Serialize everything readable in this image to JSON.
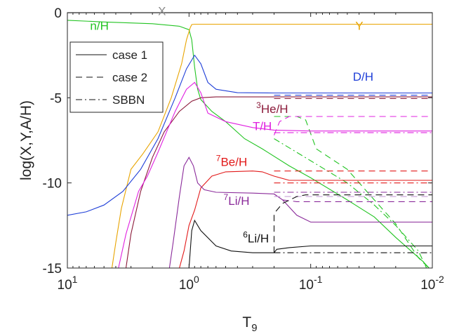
{
  "chart_data": {
    "type": "line",
    "xlabel": "T",
    "xlabel_sub": "9",
    "ylabel": "log(X,Y,A/H)",
    "x_scale": "log",
    "x_reversed": true,
    "xlim": [
      10,
      0.01
    ],
    "ylim": [
      -15,
      0
    ],
    "x_ticks": [
      {
        "value": 10,
        "base": "10",
        "exp": "1"
      },
      {
        "value": 1,
        "base": "10",
        "exp": "0"
      },
      {
        "value": 0.1,
        "base": "10",
        "exp": "-1"
      },
      {
        "value": 0.01,
        "base": "10",
        "exp": "-2"
      }
    ],
    "y_ticks": [
      {
        "value": 0,
        "label": "0"
      },
      {
        "value": -5,
        "label": "-5"
      },
      {
        "value": -10,
        "label": "-10"
      },
      {
        "value": -15,
        "label": "-15"
      }
    ],
    "legend": {
      "placement": "upper-left",
      "entries": [
        {
          "label": "case 1",
          "style": "solid"
        },
        {
          "label": "case 2",
          "style": "dashed"
        },
        {
          "label": "SBBN",
          "style": "dashdot"
        }
      ]
    },
    "series": [
      {
        "id": "x",
        "color": "#9a9a9a",
        "style": "solid",
        "points": [
          [
            10,
            -0.02
          ],
          [
            0.01,
            -0.02
          ]
        ]
      },
      {
        "id": "nh",
        "color": "#22c422",
        "style": "solid",
        "points": [
          [
            10,
            -0.45
          ],
          [
            5,
            -0.55
          ],
          [
            2,
            -0.65
          ],
          [
            1.2,
            -0.8
          ],
          [
            1,
            -1.0
          ],
          [
            0.95,
            -1.6
          ],
          [
            0.9,
            -3.2
          ],
          [
            0.85,
            -4.5
          ],
          [
            0.8,
            -5.1
          ],
          [
            0.65,
            -5.8
          ],
          [
            0.5,
            -6.4
          ],
          [
            0.35,
            -7.4
          ],
          [
            0.25,
            -8.0
          ],
          [
            0.15,
            -9.0
          ],
          [
            0.1,
            -9.7
          ],
          [
            0.05,
            -11.0
          ],
          [
            0.03,
            -12.0
          ],
          [
            0.02,
            -13.2
          ],
          [
            0.012,
            -14.6
          ],
          [
            0.01,
            -15.2
          ]
        ]
      },
      {
        "id": "nh2",
        "color": "#22c422",
        "style": "dashed",
        "points": [
          [
            0.2,
            -6.1
          ],
          [
            0.13,
            -6.1
          ],
          [
            0.11,
            -6.3
          ],
          [
            0.09,
            -8.0
          ],
          [
            0.05,
            -9.2
          ],
          [
            0.03,
            -11.0
          ],
          [
            0.02,
            -12.4
          ],
          [
            0.013,
            -14.4
          ],
          [
            0.01,
            -15.2
          ]
        ]
      },
      {
        "id": "nh3",
        "color": "#22c422",
        "style": "dashdot",
        "points": [
          [
            0.2,
            -7.4
          ],
          [
            0.1,
            -8.7
          ],
          [
            0.05,
            -10.0
          ],
          [
            0.03,
            -11.3
          ],
          [
            0.02,
            -12.5
          ],
          [
            0.013,
            -14.0
          ],
          [
            0.011,
            -15.1
          ]
        ]
      },
      {
        "id": "y",
        "color": "#e8a400",
        "style": "solid",
        "points": [
          [
            4.3,
            -15
          ],
          [
            4,
            -13.5
          ],
          [
            3.6,
            -11.5
          ],
          [
            3,
            -9.2
          ],
          [
            2.4,
            -8.3
          ],
          [
            1.8,
            -7.0
          ],
          [
            1.4,
            -5.0
          ],
          [
            1.15,
            -3.0
          ],
          [
            1.05,
            -1.6
          ],
          [
            0.98,
            -0.9
          ],
          [
            0.95,
            -0.7
          ],
          [
            0.9,
            -0.68
          ],
          [
            0.01,
            -0.68
          ]
        ]
      },
      {
        "id": "d1",
        "color": "#1f3fd8",
        "style": "solid",
        "points": [
          [
            10,
            -11.9
          ],
          [
            7,
            -11.7
          ],
          [
            5,
            -11.3
          ],
          [
            3.5,
            -10.5
          ],
          [
            2.5,
            -9.2
          ],
          [
            1.8,
            -7.4
          ],
          [
            1.3,
            -5.0
          ],
          [
            1.05,
            -3.3
          ],
          [
            0.9,
            -2.5
          ],
          [
            0.8,
            -3.0
          ],
          [
            0.7,
            -4.1
          ],
          [
            0.6,
            -4.5
          ],
          [
            0.4,
            -4.7
          ],
          [
            0.2,
            -4.72
          ],
          [
            0.01,
            -4.72
          ]
        ]
      },
      {
        "id": "d2",
        "color": "#1f3fd8",
        "style": "dashed",
        "points": [
          [
            0.2,
            -4.85
          ],
          [
            0.01,
            -4.85
          ]
        ]
      },
      {
        "id": "he3",
        "color": "#8b1a3a",
        "style": "solid",
        "points": [
          [
            3.3,
            -15
          ],
          [
            3,
            -13
          ],
          [
            2.5,
            -10.5
          ],
          [
            2,
            -8.5
          ],
          [
            1.6,
            -7.0
          ],
          [
            1.2,
            -5.8
          ],
          [
            0.95,
            -5.2
          ],
          [
            0.8,
            -5.0
          ],
          [
            0.6,
            -4.95
          ],
          [
            0.01,
            -4.95
          ]
        ]
      },
      {
        "id": "he3b",
        "color": "#8b1a3a",
        "style": "dashed",
        "points": [
          [
            0.2,
            -5.05
          ],
          [
            0.01,
            -5.05
          ]
        ]
      },
      {
        "id": "t1",
        "color": "#e020e0",
        "style": "solid",
        "points": [
          [
            3.8,
            -15
          ],
          [
            3.3,
            -13
          ],
          [
            2.6,
            -10.5
          ],
          [
            2.2,
            -9.6
          ],
          [
            1.8,
            -8.2
          ],
          [
            1.3,
            -5.8
          ],
          [
            1.05,
            -4.5
          ],
          [
            0.9,
            -4.1
          ],
          [
            0.8,
            -4.7
          ],
          [
            0.7,
            -5.9
          ],
          [
            0.5,
            -6.4
          ],
          [
            0.3,
            -6.75
          ],
          [
            0.2,
            -6.9
          ],
          [
            0.1,
            -6.95
          ],
          [
            0.01,
            -6.95
          ]
        ]
      },
      {
        "id": "t2",
        "color": "#e020e0",
        "style": "dashed",
        "points": [
          [
            0.2,
            -7.2
          ],
          [
            0.18,
            -6.4
          ],
          [
            0.15,
            -6.1
          ],
          [
            0.01,
            -6.1
          ]
        ]
      },
      {
        "id": "t3",
        "color": "#e020e0",
        "style": "dashdot",
        "points": [
          [
            0.2,
            -7.05
          ],
          [
            0.01,
            -7.05
          ]
        ]
      },
      {
        "id": "be1",
        "color": "#e21a1a",
        "style": "solid",
        "points": [
          [
            1.2,
            -15
          ],
          [
            1.1,
            -14.0
          ],
          [
            1.0,
            -12.5
          ],
          [
            0.9,
            -11.6
          ],
          [
            0.8,
            -10.3
          ],
          [
            0.65,
            -9.6
          ],
          [
            0.5,
            -9.35
          ],
          [
            0.3,
            -9.3
          ],
          [
            0.25,
            -9.35
          ],
          [
            0.2,
            -9.6
          ],
          [
            0.15,
            -9.85
          ],
          [
            0.13,
            -9.85
          ],
          [
            0.01,
            -9.85
          ]
        ]
      },
      {
        "id": "be2",
        "color": "#e21a1a",
        "style": "dashed",
        "points": [
          [
            0.2,
            -9.3
          ],
          [
            0.01,
            -9.3
          ]
        ]
      },
      {
        "id": "be3",
        "color": "#e21a1a",
        "style": "dashdot",
        "points": [
          [
            0.2,
            -10.0
          ],
          [
            0.01,
            -10.0
          ]
        ]
      },
      {
        "id": "li7",
        "color": "#8a2a9a",
        "style": "solid",
        "points": [
          [
            1.45,
            -15
          ],
          [
            1.35,
            -13.5
          ],
          [
            1.2,
            -10.8
          ],
          [
            1.1,
            -9.0
          ],
          [
            1.0,
            -8.5
          ],
          [
            0.92,
            -9.0
          ],
          [
            0.85,
            -10.0
          ],
          [
            0.75,
            -10.4
          ],
          [
            0.6,
            -10.55
          ],
          [
            0.3,
            -10.6
          ],
          [
            0.2,
            -10.65
          ],
          [
            0.17,
            -11.0
          ],
          [
            0.13,
            -11.9
          ],
          [
            0.1,
            -12.3
          ],
          [
            0.01,
            -12.3
          ]
        ]
      },
      {
        "id": "li7b",
        "color": "#8a2a9a",
        "style": "dashed",
        "points": [
          [
            0.2,
            -10.65
          ],
          [
            0.17,
            -11.0
          ],
          [
            0.13,
            -11.1
          ],
          [
            0.01,
            -11.1
          ]
        ]
      },
      {
        "id": "li7c",
        "color": "#8a2a9a",
        "style": "dashdot",
        "points": [
          [
            0.2,
            -10.55
          ],
          [
            0.01,
            -10.55
          ]
        ]
      },
      {
        "id": "li7d",
        "color": "#c8a0d8",
        "style": "dashed",
        "points": [
          [
            0.2,
            -10.8
          ],
          [
            0.01,
            -10.8
          ]
        ]
      },
      {
        "id": "li6",
        "color": "#111111",
        "style": "solid",
        "points": [
          [
            1.0,
            -15
          ],
          [
            0.95,
            -12.8
          ],
          [
            0.9,
            -12.2
          ],
          [
            0.8,
            -12.8
          ],
          [
            0.6,
            -13.7
          ],
          [
            0.45,
            -14.0
          ],
          [
            0.3,
            -14.1
          ],
          [
            0.2,
            -14.1
          ],
          [
            0.19,
            -13.9
          ],
          [
            0.15,
            -13.8
          ],
          [
            0.1,
            -13.7
          ],
          [
            0.01,
            -13.7
          ]
        ]
      },
      {
        "id": "li6b",
        "color": "#111111",
        "style": "dashed",
        "points": [
          [
            0.2,
            -14.1
          ],
          [
            0.2,
            -11.8
          ],
          [
            0.17,
            -11.2
          ],
          [
            0.13,
            -10.8
          ],
          [
            0.11,
            -10.7
          ],
          [
            0.01,
            -10.7
          ]
        ]
      },
      {
        "id": "li6c",
        "color": "#111111",
        "style": "dashdot",
        "points": [
          [
            0.2,
            -14.1
          ],
          [
            0.01,
            -14.1
          ]
        ]
      }
    ],
    "annotations": [
      {
        "id": "lbl-x",
        "text": "X",
        "color": "#8a8a8a",
        "x": 1.8,
        "y": -0.15
      },
      {
        "id": "lbl-nh",
        "text": "n/H",
        "color": "#22c422",
        "x": 6.5,
        "y": -1.0
      },
      {
        "id": "lbl-y",
        "text": "Y",
        "color": "#e8a400",
        "x": 0.043,
        "y": -1.0
      },
      {
        "id": "lbl-dh",
        "text": "D/H",
        "color": "#1f3fd8",
        "x": 0.045,
        "y": -4.0
      },
      {
        "id": "lbl-he3",
        "sup": "3",
        "text": "He/H",
        "color": "#8b1a3a",
        "x": 0.28,
        "y": -5.9
      },
      {
        "id": "lbl-th",
        "text": "T/H",
        "color": "#e020e0",
        "x": 0.3,
        "y": -6.9
      },
      {
        "id": "lbl-be7",
        "sup": "7",
        "text": "Be/H",
        "color": "#e21a1a",
        "x": 0.6,
        "y": -9.0
      },
      {
        "id": "lbl-li7",
        "sup": "7",
        "text": "Li/H",
        "color": "#8a2a9a",
        "x": 0.52,
        "y": -11.3
      },
      {
        "id": "lbl-li6",
        "sup": "6",
        "text": "Li/H",
        "color": "#111111",
        "x": 0.36,
        "y": -13.5
      }
    ]
  }
}
